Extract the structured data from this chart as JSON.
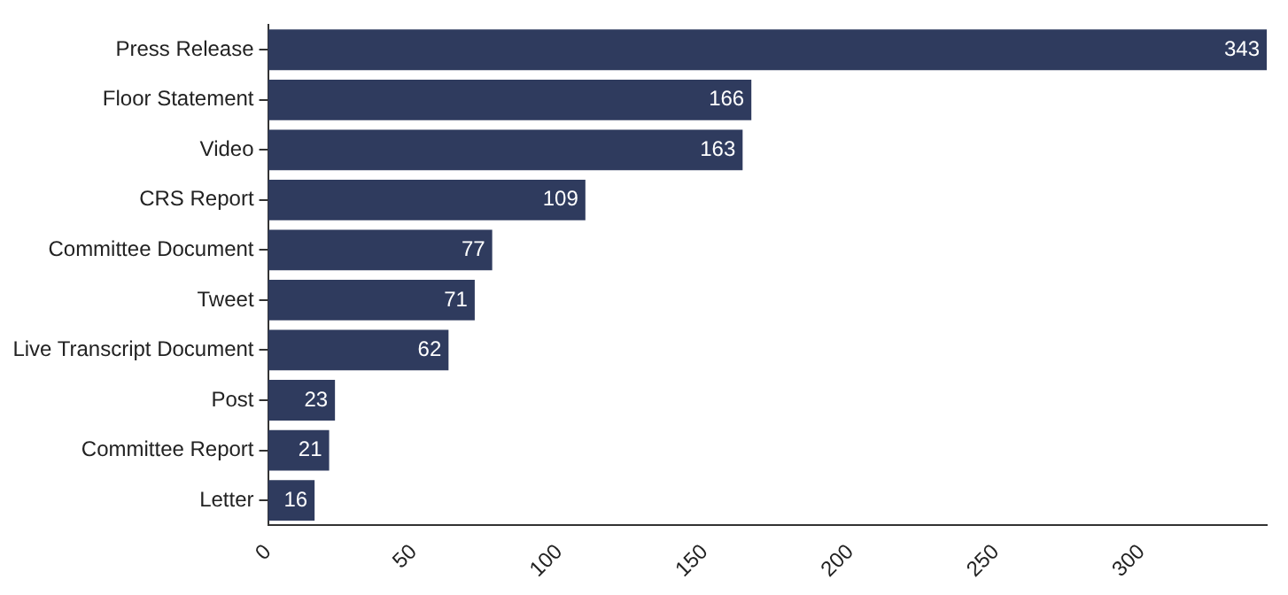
{
  "chart_data": {
    "type": "bar",
    "orientation": "horizontal",
    "categories": [
      "Press Release",
      "Floor Statement",
      "Video",
      "CRS Report",
      "Committee Document",
      "Tweet",
      "Live Transcript Document",
      "Post",
      "Committee Report",
      "Letter"
    ],
    "values": [
      343,
      166,
      163,
      109,
      77,
      71,
      62,
      23,
      21,
      16
    ],
    "color": "#2f3b5e",
    "xlim": [
      0,
      343
    ],
    "xticks": [
      0,
      50,
      100,
      150,
      200,
      250,
      300
    ],
    "data_labels": true,
    "grid": false,
    "legend": false
  }
}
